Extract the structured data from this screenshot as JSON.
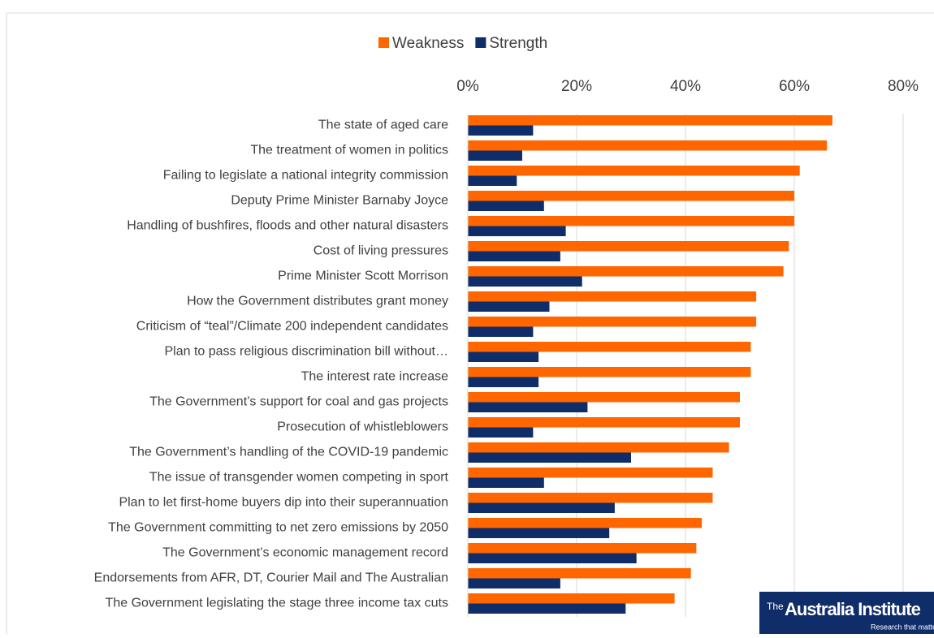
{
  "chart_data": {
    "type": "hbar",
    "categories": [
      "The state of aged care",
      "The treatment of women in politics",
      "Failing to legislate a national integrity commission",
      "Deputy Prime Minister Barnaby Joyce",
      "Handling of bushfires, floods and other natural disasters",
      "Cost of living pressures",
      "Prime Minister Scott Morrison",
      "How the Government distributes grant money",
      "Criticism of “teal”/Climate 200 independent candidates",
      "Plan to pass religious discrimination bill without…",
      "The interest rate increase",
      "The Government’s support for coal and gas projects",
      "Prosecution of whistleblowers",
      "The Government’s handling of the COVID-19 pandemic",
      "The issue of transgender women competing in sport",
      "Plan to let first-home buyers dip into their superannuation",
      "The Government committing to net zero emissions by 2050",
      "The Government’s economic management record",
      "Endorsements from AFR, DT, Courier Mail and The Australian",
      "The Government legislating the stage three income tax cuts"
    ],
    "series": [
      {
        "name": "Weakness",
        "color": "#ff6600",
        "values": [
          67,
          66,
          61,
          60,
          60,
          59,
          58,
          53,
          53,
          52,
          52,
          50,
          50,
          48,
          45,
          45,
          43,
          42,
          41,
          38
        ]
      },
      {
        "name": "Strength",
        "color": "#0f2d69",
        "values": [
          12,
          10,
          9,
          14,
          18,
          17,
          21,
          15,
          12,
          13,
          13,
          22,
          12,
          30,
          14,
          27,
          26,
          31,
          17,
          29
        ]
      }
    ],
    "xlim": [
      0,
      80
    ],
    "xticks": [
      {
        "value": 0,
        "label": "0%"
      },
      {
        "value": 20,
        "label": "20%"
      },
      {
        "value": 40,
        "label": "40%"
      },
      {
        "value": 60,
        "label": "60%"
      },
      {
        "value": 80,
        "label": "80%"
      }
    ],
    "grid": true
  },
  "logo": {
    "prefix": "The",
    "name": "Australia Institute",
    "tagline": "Research that matters"
  }
}
